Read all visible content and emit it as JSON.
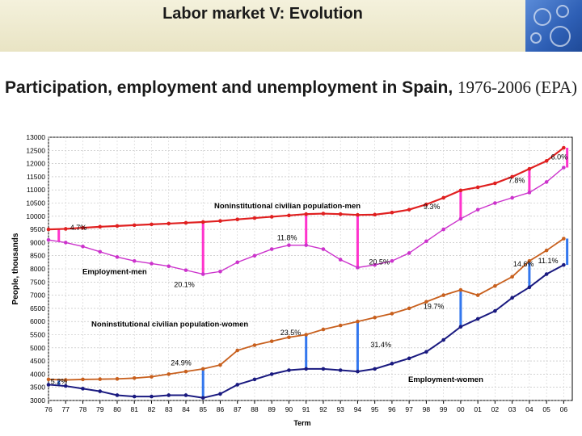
{
  "header": {
    "title": "Labor market V: Evolution"
  },
  "subtitle": {
    "bold_part": "Participation, employment and unemployment in Spain,",
    "plain_part": "1976-2006 (EPA)"
  },
  "chart_data": {
    "type": "line",
    "xlabel": "Term",
    "ylabel": "People, thousands",
    "ylim": [
      3000,
      13000
    ],
    "yticks": [
      3000,
      3500,
      4000,
      4500,
      5000,
      5500,
      6000,
      6500,
      7000,
      7500,
      8000,
      8500,
      9000,
      9500,
      10000,
      10500,
      11000,
      11500,
      12000,
      12500,
      13000
    ],
    "xlim": [
      76,
      106.5
    ],
    "xtick_labels": [
      "76",
      "77",
      "78",
      "79",
      "80",
      "81",
      "82",
      "83",
      "84",
      "85",
      "86",
      "87",
      "88",
      "89",
      "90",
      "91",
      "92",
      "93",
      "94",
      "95",
      "96",
      "97",
      "98",
      "99",
      "00",
      "01",
      "02",
      "03",
      "04",
      "05",
      "06"
    ],
    "grid": true,
    "colors": {
      "men_population": "#e02020",
      "men_employment": "#cc33cc",
      "women_population": "#c8601e",
      "women_employment": "#1a1a80",
      "gap_men": "#ff33cc",
      "gap_women": "#3377ee"
    },
    "series": [
      {
        "name": "Noninstitutional civilian population-men",
        "x": [
          76,
          77,
          78,
          79,
          80,
          81,
          82,
          83,
          84,
          85,
          86,
          87,
          88,
          89,
          90,
          91,
          92,
          93,
          94,
          95,
          96,
          97,
          98,
          99,
          100,
          101,
          102,
          103,
          104,
          105,
          106
        ],
        "values": [
          9500,
          9520,
          9560,
          9600,
          9630,
          9660,
          9690,
          9720,
          9750,
          9780,
          9820,
          9880,
          9930,
          9980,
          10030,
          10080,
          10100,
          10080,
          10050,
          10060,
          10140,
          10250,
          10450,
          10700,
          10980,
          11100,
          11250,
          11500,
          11800,
          12100,
          12600
        ]
      },
      {
        "name": "Employment-men",
        "x": [
          76,
          77,
          78,
          79,
          80,
          81,
          82,
          83,
          84,
          85,
          86,
          87,
          88,
          89,
          90,
          91,
          92,
          93,
          94,
          95,
          96,
          97,
          98,
          99,
          100,
          101,
          102,
          103,
          104,
          105,
          106
        ],
        "values": [
          9100,
          9000,
          8850,
          8650,
          8450,
          8300,
          8200,
          8100,
          7950,
          7800,
          7900,
          8250,
          8500,
          8750,
          8900,
          8900,
          8750,
          8350,
          8050,
          8150,
          8300,
          8600,
          9050,
          9500,
          9900,
          10250,
          10500,
          10700,
          10900,
          11300,
          11850
        ]
      },
      {
        "name": "Noninstitutional civilian population-women",
        "x": [
          76,
          77,
          78,
          79,
          80,
          81,
          82,
          83,
          84,
          85,
          86,
          87,
          88,
          89,
          90,
          91,
          92,
          93,
          94,
          95,
          96,
          97,
          98,
          99,
          100,
          101,
          102,
          103,
          104,
          105,
          106
        ],
        "values": [
          3800,
          3780,
          3800,
          3810,
          3820,
          3850,
          3900,
          4000,
          4100,
          4200,
          4350,
          4900,
          5100,
          5250,
          5400,
          5500,
          5700,
          5850,
          6000,
          6150,
          6300,
          6500,
          6750,
          7000,
          7200,
          7000,
          7350,
          7700,
          8300,
          8700,
          9150
        ]
      },
      {
        "name": "Employment-women",
        "x": [
          76,
          77,
          78,
          79,
          80,
          81,
          82,
          83,
          84,
          85,
          86,
          87,
          88,
          89,
          90,
          91,
          92,
          93,
          94,
          95,
          96,
          97,
          98,
          99,
          100,
          101,
          102,
          103,
          104,
          105,
          106
        ],
        "values": [
          3600,
          3550,
          3450,
          3350,
          3200,
          3150,
          3150,
          3200,
          3200,
          3100,
          3250,
          3600,
          3800,
          4000,
          4150,
          4200,
          4200,
          4150,
          4100,
          4200,
          4400,
          4600,
          4850,
          5300,
          5800,
          6100,
          6400,
          6900,
          7300,
          7800,
          8150
        ]
      }
    ],
    "gap_markers": {
      "men": [
        {
          "x": 76.6,
          "label": "4.7%"
        },
        {
          "x": 85,
          "label": "20.1%"
        },
        {
          "x": 91,
          "label": "11.8%"
        },
        {
          "x": 94,
          "label": "20.5%"
        },
        {
          "x": 100,
          "label": "9.3%"
        },
        {
          "x": 104,
          "label": "7.8%"
        },
        {
          "x": 106.2,
          "label": "6.0%"
        }
      ],
      "women": [
        {
          "x": 76.6,
          "label": "5.2%"
        },
        {
          "x": 85,
          "label": "24.9%"
        },
        {
          "x": 91,
          "label": "23.5%"
        },
        {
          "x": 94,
          "label": "31.4%"
        },
        {
          "x": 100,
          "label": "19.7%"
        },
        {
          "x": 104,
          "label": "14.6%"
        },
        {
          "x": 106.2,
          "label": "11.1%"
        }
      ]
    }
  }
}
